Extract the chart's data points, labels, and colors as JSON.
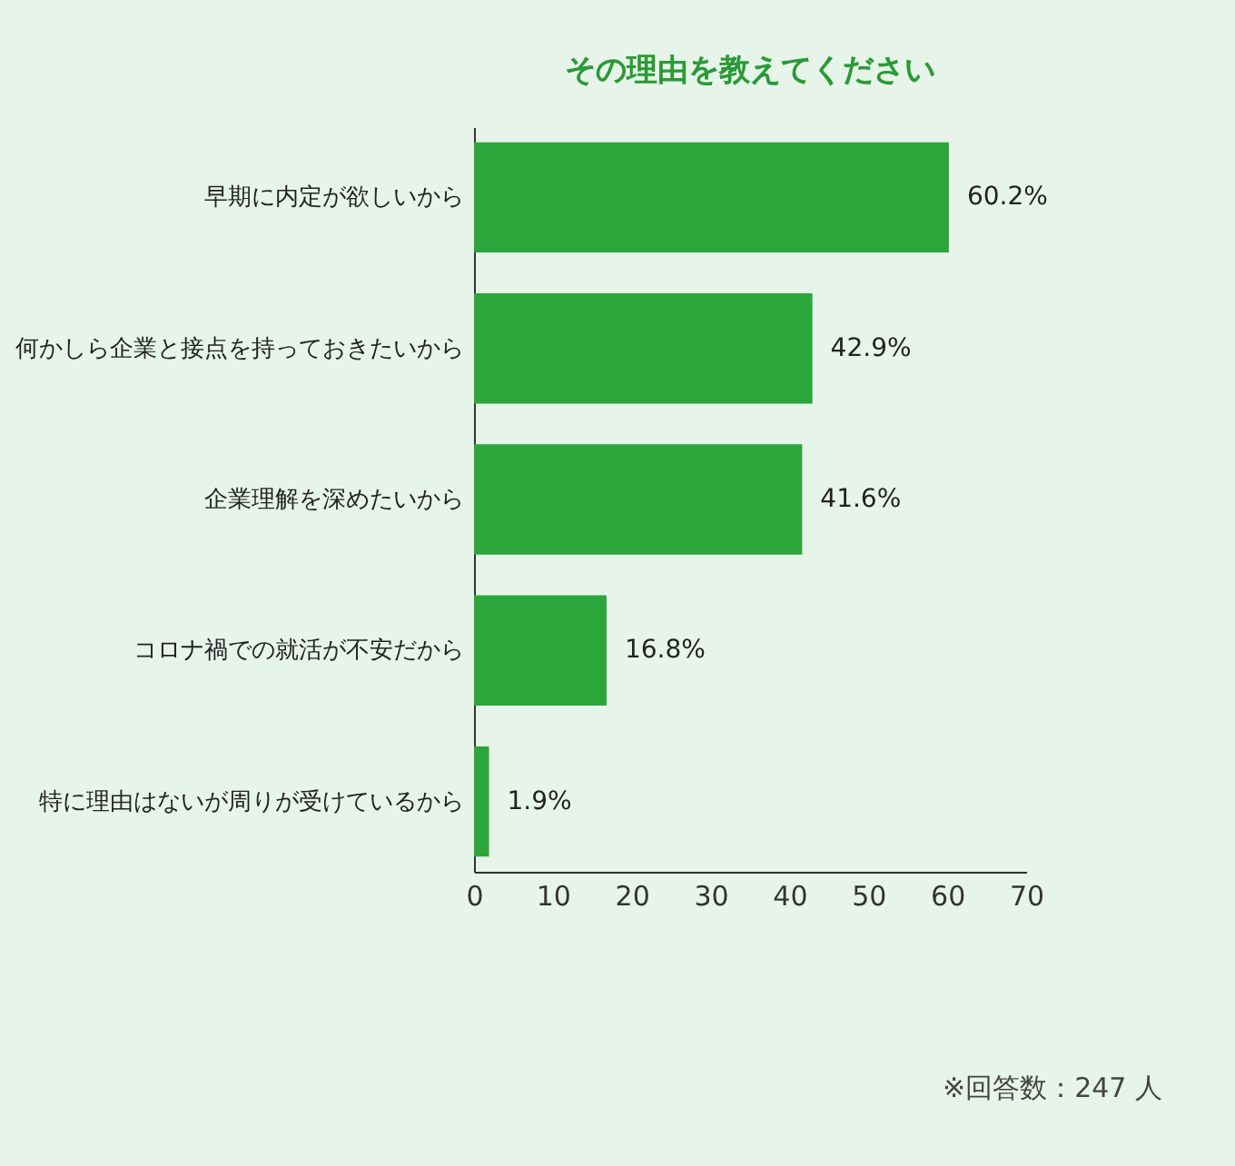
{
  "chart_data": {
    "type": "bar",
    "orientation": "horizontal",
    "title": "その理由を教えてください",
    "categories": [
      "早期に内定が欲しいから",
      "何かしら企業と接点を持っておきたいから",
      "企業理解を深めたいから",
      "コロナ禍での就活が不安だから",
      "特に理由はないが周りが受けているから"
    ],
    "values": [
      60.2,
      42.9,
      41.6,
      16.8,
      1.9
    ],
    "value_labels": [
      "60.2%",
      "42.9%",
      "41.6%",
      "16.8%",
      "1.9%"
    ],
    "color": "#2ca53b",
    "xlim": [
      0,
      70
    ],
    "xticks": [
      0,
      10,
      20,
      30,
      40,
      50,
      60,
      70
    ],
    "grid": false,
    "annotations": [
      "※回答数：247 人"
    ]
  }
}
